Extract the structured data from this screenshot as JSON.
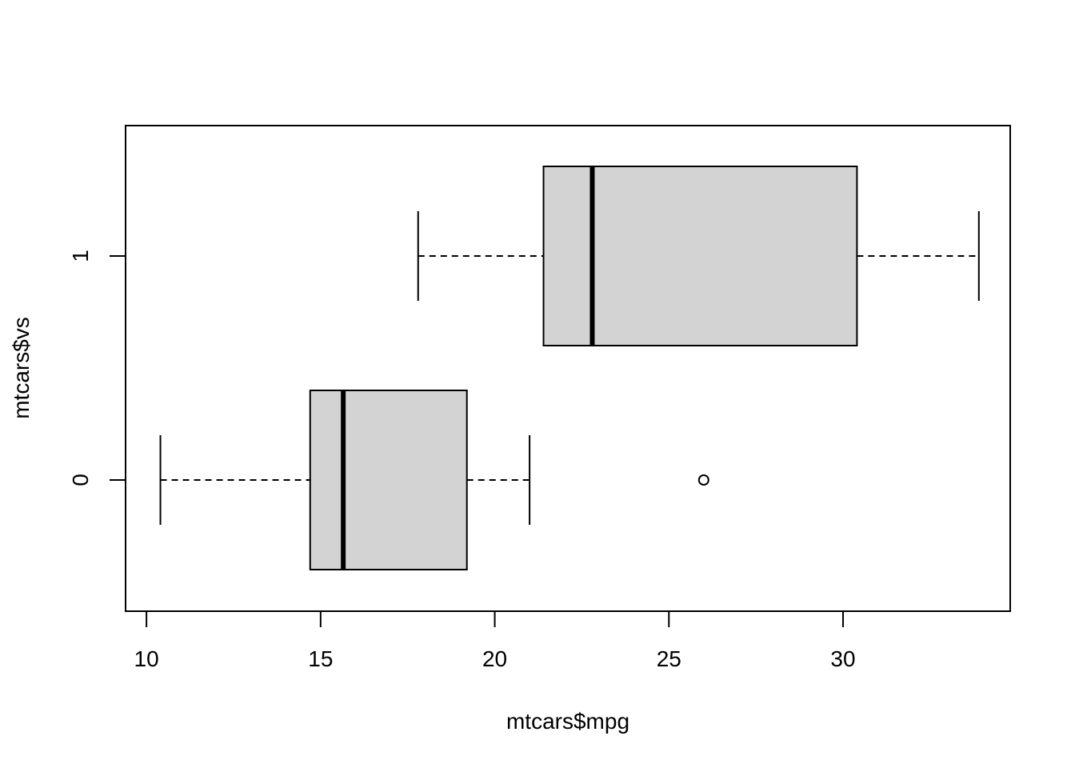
{
  "chart_data": {
    "type": "boxplot",
    "orientation": "horizontal",
    "xlabel": "mtcars$mpg",
    "ylabel": "mtcars$vs",
    "xlim": [
      9.4,
      34.8
    ],
    "xticks": [
      10,
      15,
      20,
      25,
      30
    ],
    "grid": false,
    "legend": "none",
    "box_fill": "#d3d3d3",
    "groups": [
      {
        "label": "0",
        "whisker_low": 10.4,
        "q1": 14.7,
        "median": 15.65,
        "q3": 19.2,
        "whisker_high": 21.0,
        "outliers": [
          26.0
        ]
      },
      {
        "label": "1",
        "whisker_low": 17.8,
        "q1": 21.4,
        "median": 22.8,
        "q3": 30.4,
        "whisker_high": 33.9,
        "outliers": []
      }
    ]
  }
}
